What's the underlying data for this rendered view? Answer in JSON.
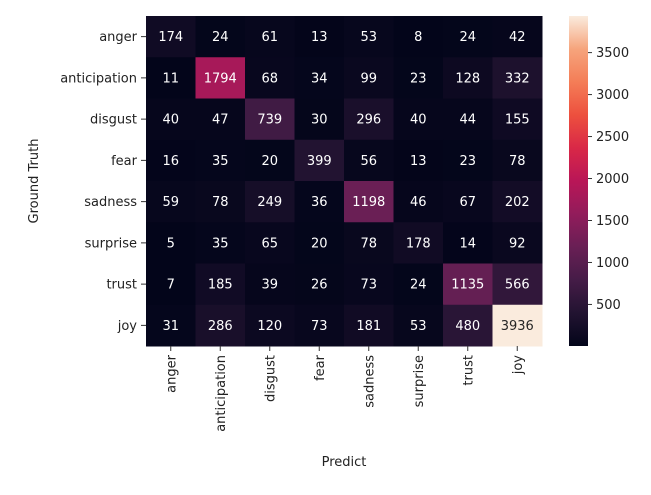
{
  "chart_data": {
    "type": "heatmap",
    "xlabel": "Predict",
    "ylabel": "Ground Truth",
    "x_categories": [
      "anger",
      "anticipation",
      "disgust",
      "fear",
      "sadness",
      "surprise",
      "trust",
      "joy"
    ],
    "y_categories": [
      "anger",
      "anticipation",
      "disgust",
      "fear",
      "sadness",
      "surprise",
      "trust",
      "joy"
    ],
    "values": [
      [
        174,
        24,
        61,
        13,
        53,
        8,
        24,
        42
      ],
      [
        11,
        1794,
        68,
        34,
        99,
        23,
        128,
        332
      ],
      [
        40,
        47,
        739,
        30,
        296,
        40,
        44,
        155
      ],
      [
        16,
        35,
        20,
        399,
        56,
        13,
        23,
        78
      ],
      [
        59,
        78,
        249,
        36,
        1198,
        46,
        67,
        202
      ],
      [
        5,
        35,
        65,
        20,
        78,
        178,
        14,
        92
      ],
      [
        7,
        185,
        39,
        26,
        73,
        24,
        1135,
        566
      ],
      [
        31,
        286,
        120,
        73,
        181,
        53,
        480,
        3936
      ]
    ],
    "colorbar": {
      "min": 5,
      "max": 3936,
      "ticks": [
        500,
        1000,
        1500,
        2000,
        2500,
        3000,
        3500
      ],
      "colormap": "rocket"
    }
  }
}
